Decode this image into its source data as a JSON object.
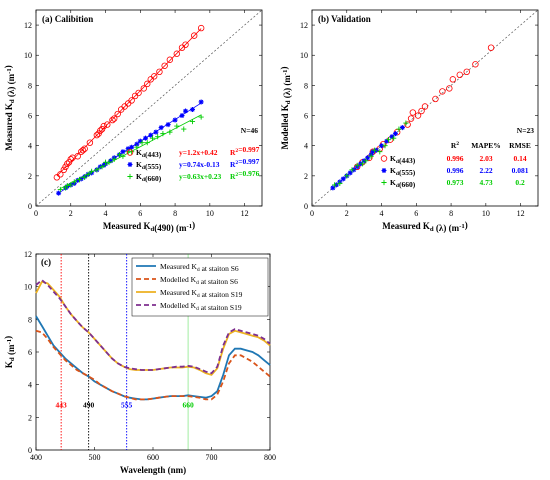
{
  "colors": {
    "r443": "#ff0000",
    "b555": "#0000ff",
    "g660": "#00cc00",
    "s6_meas": "#1f77b4",
    "s6_mod": "#d95319",
    "s19_meas": "#edb120",
    "s19_mod": "#7e2f8e"
  },
  "chart_data": [
    {
      "panel": "a",
      "type": "scatter",
      "title": "(a) Calibition",
      "xlabel": "Measured Kd(490) (m-1)",
      "ylabel": "Measured Kd (λ) (m-1)",
      "xlim": [
        0,
        13
      ],
      "ylim": [
        0,
        13
      ],
      "xticks": [
        "0",
        "2",
        "4",
        "6",
        "8",
        "10",
        "12"
      ],
      "yticks": [
        "0",
        "2",
        "4",
        "6",
        "8",
        "10",
        "12"
      ],
      "annotation": "N=46",
      "series": [
        {
          "name": "Kd(443)",
          "marker": "circle",
          "color": "#ff0000",
          "fit": "y=1.2x+0.42",
          "r2": "R²=0.997",
          "x": [
            1.2,
            1.4,
            1.6,
            1.7,
            1.8,
            1.9,
            2.0,
            2.1,
            2.4,
            2.6,
            2.7,
            2.8,
            3.1,
            3.5,
            3.6,
            3.7,
            3.8,
            3.9,
            4.1,
            4.4,
            4.5,
            4.7,
            4.9,
            5.1,
            5.3,
            5.5,
            5.7,
            5.9,
            6.2,
            6.4,
            6.6,
            6.8,
            7.1,
            7.4,
            7.7,
            8.1,
            8.4,
            8.6,
            9.1,
            9.5
          ],
          "y": [
            1.9,
            2.1,
            2.4,
            2.6,
            2.8,
            2.9,
            3.1,
            3.2,
            3.3,
            3.6,
            3.7,
            3.8,
            4.2,
            4.7,
            4.8,
            5.0,
            5.1,
            5.3,
            5.4,
            5.7,
            5.8,
            6.1,
            6.4,
            6.6,
            6.8,
            7.0,
            7.3,
            7.5,
            7.8,
            8.1,
            8.4,
            8.6,
            8.9,
            9.3,
            9.7,
            10.1,
            10.5,
            10.7,
            11.3,
            11.8
          ]
        },
        {
          "name": "Kd(555)",
          "marker": "asterisk",
          "color": "#0000ff",
          "fit": "y=0.74x-0.13",
          "r2": "R²=0.997",
          "x": [
            1.3,
            1.7,
            1.8,
            2.0,
            2.2,
            2.4,
            2.6,
            2.8,
            3.0,
            3.2,
            3.5,
            3.7,
            3.9,
            4.0,
            4.3,
            4.5,
            4.8,
            5.0,
            5.3,
            5.5,
            5.8,
            6.0,
            6.3,
            6.6,
            6.9,
            7.2,
            7.6,
            8.0,
            8.4,
            8.6,
            9.0,
            9.5
          ],
          "y": [
            0.85,
            1.2,
            1.3,
            1.4,
            1.5,
            1.7,
            1.8,
            1.95,
            2.1,
            2.2,
            2.4,
            2.6,
            2.7,
            2.8,
            3.0,
            3.2,
            3.4,
            3.6,
            3.8,
            3.9,
            4.1,
            4.3,
            4.5,
            4.7,
            4.9,
            5.2,
            5.4,
            5.7,
            6.0,
            6.3,
            6.4,
            6.9
          ]
        },
        {
          "name": "Kd(660)",
          "marker": "plus",
          "color": "#00cc00",
          "fit": "y=0.63x+0.23",
          "r2": "R²=0.976",
          "x": [
            1.4,
            1.7,
            1.8,
            2.0,
            2.2,
            2.5,
            2.8,
            3.0,
            3.2,
            3.5,
            3.8,
            4.0,
            4.2,
            4.5,
            4.8,
            5.0,
            5.3,
            5.5,
            5.8,
            6.1,
            6.4,
            6.7,
            7.0,
            7.3,
            7.7,
            8.1,
            8.5,
            9.0,
            9.5
          ],
          "y": [
            1.1,
            1.2,
            1.35,
            1.4,
            1.6,
            1.75,
            1.9,
            2.1,
            2.3,
            2.4,
            2.6,
            2.9,
            2.9,
            3.1,
            3.4,
            3.3,
            3.6,
            3.6,
            3.9,
            4.2,
            4.2,
            4.5,
            4.6,
            4.8,
            4.9,
            5.3,
            5.1,
            5.6,
            5.9
          ]
        }
      ]
    },
    {
      "panel": "b",
      "type": "scatter",
      "title": "(b) Validation",
      "xlabel": "Measured Kd (λ) (m-1)",
      "ylabel": "Modelled Kd (λ) (m-1)",
      "xlim": [
        0,
        13
      ],
      "ylim": [
        0,
        13
      ],
      "xticks": [
        "0",
        "2",
        "4",
        "6",
        "8",
        "10",
        "12"
      ],
      "yticks": [
        "0",
        "2",
        "4",
        "6",
        "8",
        "10",
        "12"
      ],
      "annotation": "N=23",
      "stats_headers": [
        "R²",
        "MAPE%",
        "RMSE"
      ],
      "series": [
        {
          "name": "Kd(443)",
          "marker": "circle",
          "color": "#ff0000",
          "r2": "0.996",
          "mape": "2.03",
          "rmse": "0.14",
          "x": [
            2.6,
            2.9,
            3.3,
            3.5,
            3.9,
            4.1,
            4.5,
            4.9,
            5.5,
            5.7,
            5.8,
            6.1,
            6.3,
            6.5,
            7.1,
            7.5,
            7.9,
            8.1,
            8.5,
            8.9,
            9.4,
            10.3
          ],
          "y": [
            2.6,
            2.9,
            3.2,
            3.6,
            3.8,
            4.1,
            4.4,
            4.9,
            5.4,
            5.8,
            6.2,
            6.0,
            6.3,
            6.6,
            7.1,
            7.6,
            7.8,
            8.4,
            8.7,
            8.9,
            9.4,
            10.5
          ]
        },
        {
          "name": "Kd(555)",
          "marker": "asterisk",
          "color": "#0000ff",
          "r2": "0.996",
          "mape": "2.22",
          "rmse": "0.081",
          "x": [
            1.2,
            1.4,
            1.6,
            1.8,
            2.0,
            2.2,
            2.4,
            2.6,
            2.8,
            3.0,
            3.2,
            3.4,
            3.5,
            3.7,
            4.0,
            4.3,
            4.6,
            4.8,
            5.2
          ],
          "y": [
            1.2,
            1.4,
            1.6,
            1.8,
            2.0,
            2.2,
            2.4,
            2.6,
            2.8,
            3.0,
            3.2,
            3.4,
            3.6,
            3.7,
            4.0,
            4.3,
            4.6,
            4.8,
            5.2
          ]
        },
        {
          "name": "Kd(660)",
          "marker": "plus",
          "color": "#00cc00",
          "r2": "0.973",
          "mape": "4.73",
          "rmse": "0.2",
          "x": [
            1.3,
            1.6,
            2.0,
            2.3,
            2.6,
            2.9,
            3.1,
            3.4,
            3.6,
            3.9,
            4.2,
            4.4,
            4.7,
            5.0,
            5.4
          ],
          "y": [
            1.4,
            1.5,
            2.0,
            2.4,
            2.7,
            2.8,
            3.0,
            3.3,
            3.7,
            3.6,
            4.0,
            4.4,
            4.5,
            5.1,
            5.5
          ]
        }
      ]
    },
    {
      "panel": "c",
      "type": "line",
      "title": "(c)",
      "xlabel": "Wavelength (nm)",
      "ylabel": "Kd (m-1)",
      "xlim": [
        400,
        800
      ],
      "ylim": [
        0,
        12
      ],
      "xticks": [
        "400",
        "500",
        "600",
        "700",
        "800"
      ],
      "yticks": [
        "0",
        "2",
        "4",
        "6",
        "8",
        "10",
        "12"
      ],
      "vlines": [
        {
          "x": 443,
          "label": "443",
          "color": "#ff0000"
        },
        {
          "x": 490,
          "label": "490",
          "color": "#000000"
        },
        {
          "x": 555,
          "label": "555",
          "color": "#0000ff"
        },
        {
          "x": 660,
          "label": "660",
          "color": "#00cc00"
        }
      ],
      "x": [
        400,
        410,
        420,
        430,
        440,
        450,
        460,
        470,
        480,
        490,
        500,
        510,
        520,
        530,
        540,
        550,
        560,
        570,
        580,
        590,
        600,
        610,
        620,
        630,
        640,
        650,
        660,
        670,
        680,
        690,
        700,
        710,
        720,
        730,
        740,
        750,
        760,
        770,
        780,
        790,
        800
      ],
      "series": [
        {
          "name": "Measured Kd at staiton S6",
          "color": "#1f77b4",
          "dash": "solid",
          "values": [
            8.2,
            7.6,
            7.0,
            6.4,
            6.0,
            5.6,
            5.3,
            5.0,
            4.7,
            4.5,
            4.2,
            4.0,
            3.8,
            3.6,
            3.45,
            3.3,
            3.2,
            3.15,
            3.1,
            3.1,
            3.15,
            3.2,
            3.25,
            3.3,
            3.3,
            3.3,
            3.35,
            3.3,
            3.25,
            3.2,
            3.3,
            3.6,
            4.6,
            5.8,
            6.2,
            6.2,
            6.1,
            6.0,
            5.8,
            5.5,
            5.2
          ]
        },
        {
          "name": "Modelled Kd at staiton S6",
          "color": "#d95319",
          "dash": "dashed",
          "values": [
            7.3,
            7.2,
            6.8,
            6.3,
            5.9,
            5.5,
            5.2,
            4.9,
            4.7,
            4.5,
            4.3,
            4.0,
            3.8,
            3.6,
            3.45,
            3.3,
            3.2,
            3.1,
            3.1,
            3.1,
            3.15,
            3.2,
            3.25,
            3.3,
            3.3,
            3.3,
            3.3,
            3.25,
            3.2,
            3.1,
            3.1,
            3.4,
            4.2,
            5.3,
            5.8,
            5.8,
            5.6,
            5.4,
            5.1,
            4.8,
            4.5
          ]
        },
        {
          "name": "Measured Kd at staiton S19",
          "color": "#edb120",
          "dash": "solid",
          "values": [
            9.6,
            10.3,
            10.2,
            9.8,
            9.4,
            8.8,
            8.3,
            7.9,
            7.5,
            7.2,
            6.8,
            6.4,
            6.0,
            5.6,
            5.3,
            5.1,
            4.95,
            4.9,
            4.9,
            4.9,
            4.9,
            4.95,
            5.0,
            5.05,
            5.05,
            5.05,
            5.1,
            5.05,
            4.9,
            4.7,
            4.6,
            5.0,
            6.2,
            7.1,
            7.3,
            7.2,
            7.1,
            7.0,
            6.9,
            6.7,
            6.4
          ]
        },
        {
          "name": "Modelled Kd at staiton S19",
          "color": "#7e2f8e",
          "dash": "dashed",
          "values": [
            10.1,
            10.4,
            10.1,
            9.7,
            9.3,
            8.8,
            8.3,
            7.9,
            7.5,
            7.2,
            6.8,
            6.4,
            6.0,
            5.6,
            5.3,
            5.1,
            5.0,
            4.95,
            4.9,
            4.9,
            4.9,
            4.95,
            5.0,
            5.05,
            5.1,
            5.1,
            5.15,
            5.1,
            4.95,
            4.8,
            4.7,
            5.1,
            6.4,
            7.2,
            7.4,
            7.3,
            7.2,
            7.1,
            7.0,
            6.8,
            6.5
          ]
        }
      ]
    }
  ]
}
